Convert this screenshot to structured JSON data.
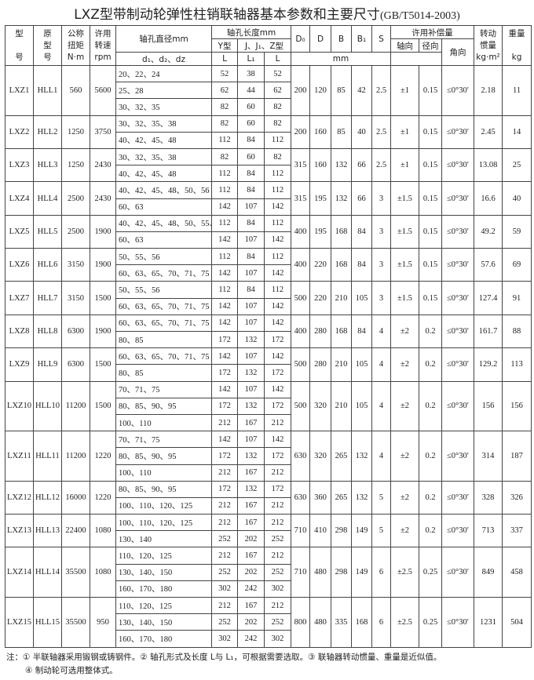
{
  "title": {
    "main": "LXZ型带制动轮弹性柱销联轴器基本参数和主要尺寸",
    "standard": "(GB/T5014-2003)"
  },
  "header": {
    "model": [
      "型",
      "号"
    ],
    "orig_model": [
      "原",
      "型",
      "号"
    ],
    "torque": [
      "公称",
      "扭矩",
      "N·m"
    ],
    "speed": [
      "许用",
      "转速",
      "rpm"
    ],
    "bore_dia": "轴孔直径mm",
    "bore_dia_sub": "d₁、d₂、dz",
    "bore_len": "轴孔长度mm",
    "y_type": "Y型",
    "jz_type": "J、J₁、Z型",
    "L": "L",
    "L1": "L₁",
    "L2": "L",
    "D0": "D₀",
    "D": "D",
    "B": "B",
    "B1": "B₁",
    "S": "S",
    "mm": "mm",
    "comp": "许用补偿量",
    "axial": "轴向",
    "radial": "径向",
    "angular": "角向",
    "inertia": [
      "转动",
      "惯量",
      "kg·m²"
    ],
    "weight": [
      "重量",
      "kg"
    ]
  },
  "rows": [
    {
      "model": "LXZ1",
      "orig": "HLL1",
      "torque": "560",
      "speed": "5600",
      "bores": [
        [
          "20、22、24",
          "52",
          "38",
          "52"
        ],
        [
          "25、28",
          "62",
          "44",
          "62"
        ],
        [
          "30、32、35",
          "82",
          "60",
          "82"
        ]
      ],
      "D0": "200",
      "D": "120",
      "B": "85",
      "B1": "42",
      "S": "2.5",
      "axial": "±1",
      "radial": "0.15",
      "angular": "≤0°30′",
      "inertia": "2.18",
      "weight": "11"
    },
    {
      "model": "LXZ2",
      "orig": "HLL2",
      "torque": "1250",
      "speed": "3750",
      "bores": [
        [
          "30、32、35、38",
          "82",
          "60",
          "82"
        ],
        [
          "40、42、45、48",
          "112",
          "84",
          "112"
        ]
      ],
      "D0": "200",
      "D": "160",
      "B": "85",
      "B1": "40",
      "S": "2.5",
      "axial": "±1",
      "radial": "0.15",
      "angular": "≤0°30′",
      "inertia": "2.45",
      "weight": "14"
    },
    {
      "model": "LXZ3",
      "orig": "HLL3",
      "torque": "1250",
      "speed": "2430",
      "bores": [
        [
          "30、32、35、38",
          "82",
          "60",
          "82"
        ],
        [
          "40、42、45、48",
          "112",
          "84",
          "112"
        ]
      ],
      "D0": "315",
      "D": "160",
      "B": "132",
      "B1": "66",
      "S": "2.5",
      "axial": "±1",
      "radial": "0.15",
      "angular": "≤0°30′",
      "inertia": "13.08",
      "weight": "25"
    },
    {
      "model": "LXZ4",
      "orig": "HLL4",
      "torque": "2500",
      "speed": "2430",
      "bores": [
        [
          "40、42、45、48、50、56",
          "112",
          "84",
          "112"
        ],
        [
          "60、63",
          "142",
          "107",
          "142"
        ]
      ],
      "D0": "315",
      "D": "195",
      "B": "132",
      "B1": "66",
      "S": "3",
      "axial": "±1.5",
      "radial": "0.15",
      "angular": "≤0°30′",
      "inertia": "16.6",
      "weight": "40"
    },
    {
      "model": "LXZ5",
      "orig": "HLL5",
      "torque": "2500",
      "speed": "1900",
      "bores": [
        [
          "40、42、45、48、50、55、56",
          "112",
          "84",
          "112"
        ],
        [
          "60、63",
          "142",
          "107",
          "142"
        ]
      ],
      "D0": "400",
      "D": "195",
      "B": "168",
      "B1": "84",
      "S": "3",
      "axial": "±1.5",
      "radial": "0.15",
      "angular": "≤0°30′",
      "inertia": "49.2",
      "weight": "59"
    },
    {
      "model": "LXZ6",
      "orig": "HLL6",
      "torque": "3150",
      "speed": "1900",
      "bores": [
        [
          "50、55、56",
          "112",
          "84",
          "112"
        ],
        [
          "60、63、65、70、71、75",
          "142",
          "107",
          "142"
        ]
      ],
      "D0": "400",
      "D": "220",
      "B": "168",
      "B1": "84",
      "S": "3",
      "axial": "±1.5",
      "radial": "0.15",
      "angular": "≤0°30′",
      "inertia": "57.6",
      "weight": "69"
    },
    {
      "model": "LXZ7",
      "orig": "HLL7",
      "torque": "3150",
      "speed": "1500",
      "bores": [
        [
          "50、55、56",
          "112",
          "84",
          "112"
        ],
        [
          "60、63、65、70、71、75",
          "142",
          "107",
          "142"
        ]
      ],
      "D0": "500",
      "D": "220",
      "B": "210",
      "B1": "105",
      "S": "3",
      "axial": "±1.5",
      "radial": "0.15",
      "angular": "≤0°30′",
      "inertia": "127.4",
      "weight": "91"
    },
    {
      "model": "LXZ8",
      "orig": "HLL8",
      "torque": "6300",
      "speed": "1900",
      "bores": [
        [
          "60、63、65、70、71、75",
          "142",
          "107",
          "142"
        ],
        [
          "80、85",
          "172",
          "132",
          "172"
        ]
      ],
      "D0": "400",
      "D": "280",
      "B": "168",
      "B1": "84",
      "S": "4",
      "axial": "±2",
      "radial": "0.2",
      "angular": "≤0°30′",
      "inertia": "161.7",
      "weight": "88"
    },
    {
      "model": "LXZ9",
      "orig": "HLL9",
      "torque": "6300",
      "speed": "1500",
      "bores": [
        [
          "60、63、65、70、71、75",
          "142",
          "107",
          "142"
        ],
        [
          "80、85",
          "172",
          "132",
          "172"
        ]
      ],
      "D0": "500",
      "D": "280",
      "B": "210",
      "B1": "105",
      "S": "4",
      "axial": "±2",
      "radial": "0.2",
      "angular": "≤0°30′",
      "inertia": "129.2",
      "weight": "113"
    },
    {
      "model": "LXZ10",
      "orig": "HLL10",
      "torque": "11200",
      "speed": "1500",
      "bores": [
        [
          "70、71、75",
          "142",
          "107",
          "142"
        ],
        [
          "80、85、90、95",
          "172",
          "132",
          "172"
        ],
        [
          "100、110",
          "212",
          "167",
          "212"
        ]
      ],
      "D0": "500",
      "D": "320",
      "B": "210",
      "B1": "105",
      "S": "4",
      "axial": "±2",
      "radial": "0.2",
      "angular": "≤0°30′",
      "inertia": "156",
      "weight": "156"
    },
    {
      "model": "LXZ11",
      "orig": "HLL11",
      "torque": "11200",
      "speed": "1220",
      "bores": [
        [
          "70、71、75",
          "142",
          "107",
          "142"
        ],
        [
          "80、85、90、95",
          "172",
          "132",
          "172"
        ],
        [
          "100、110",
          "212",
          "167",
          "212"
        ]
      ],
      "D0": "630",
      "D": "320",
      "B": "265",
      "B1": "132",
      "S": "4",
      "axial": "±2",
      "radial": "0.2",
      "angular": "≤0°30′",
      "inertia": "314",
      "weight": "187"
    },
    {
      "model": "LXZ12",
      "orig": "HLL12",
      "torque": "16000",
      "speed": "1220",
      "bores": [
        [
          "80、85、90、95",
          "172",
          "132",
          "172"
        ],
        [
          "100、110、120、125",
          "212",
          "167",
          "212"
        ]
      ],
      "D0": "630",
      "D": "360",
      "B": "265",
      "B1": "132",
      "S": "5",
      "axial": "±2",
      "radial": "0.2",
      "angular": "≤0°30′",
      "inertia": "328",
      "weight": "326"
    },
    {
      "model": "LXZ13",
      "orig": "HLL13",
      "torque": "22400",
      "speed": "1080",
      "bores": [
        [
          "100、110、120、125",
          "212",
          "167",
          "212"
        ],
        [
          "130、140",
          "252",
          "202",
          "252"
        ]
      ],
      "D0": "710",
      "D": "410",
      "B": "298",
      "B1": "149",
      "S": "5",
      "axial": "±2",
      "radial": "0.2",
      "angular": "≤0°30′",
      "inertia": "713",
      "weight": "337"
    },
    {
      "model": "LXZ14",
      "orig": "HLL14",
      "torque": "35500",
      "speed": "1080",
      "bores": [
        [
          "110、120、125",
          "212",
          "167",
          "212"
        ],
        [
          "130、140、150",
          "252",
          "202",
          "252"
        ],
        [
          "160、170、180",
          "302",
          "242",
          "302"
        ]
      ],
      "D0": "710",
      "D": "480",
      "B": "298",
      "B1": "149",
      "S": "6",
      "axial": "±2.5",
      "radial": "0.25",
      "angular": "≤0°30′",
      "inertia": "849",
      "weight": "458"
    },
    {
      "model": "LXZ15",
      "orig": "HLL15",
      "torque": "35500",
      "speed": "950",
      "bores": [
        [
          "110、120、125",
          "212",
          "167",
          "212"
        ],
        [
          "130、140、150",
          "252",
          "202",
          "252"
        ],
        [
          "160、170、180",
          "302",
          "242",
          "302"
        ]
      ],
      "D0": "800",
      "D": "480",
      "B": "335",
      "B1": "168",
      "S": "6",
      "axial": "±2.5",
      "radial": "0.25",
      "angular": "≤0°30′",
      "inertia": "1231",
      "weight": "504"
    }
  ],
  "notes": [
    "注：① 半联轴器采用锻钢或铸钢件。② 轴孔形式及长度 L与 L₁，可根据需要选取。③ 联轴器转动惯量、重量是近似值。",
    "④ 制动轮可选用整体式。"
  ]
}
